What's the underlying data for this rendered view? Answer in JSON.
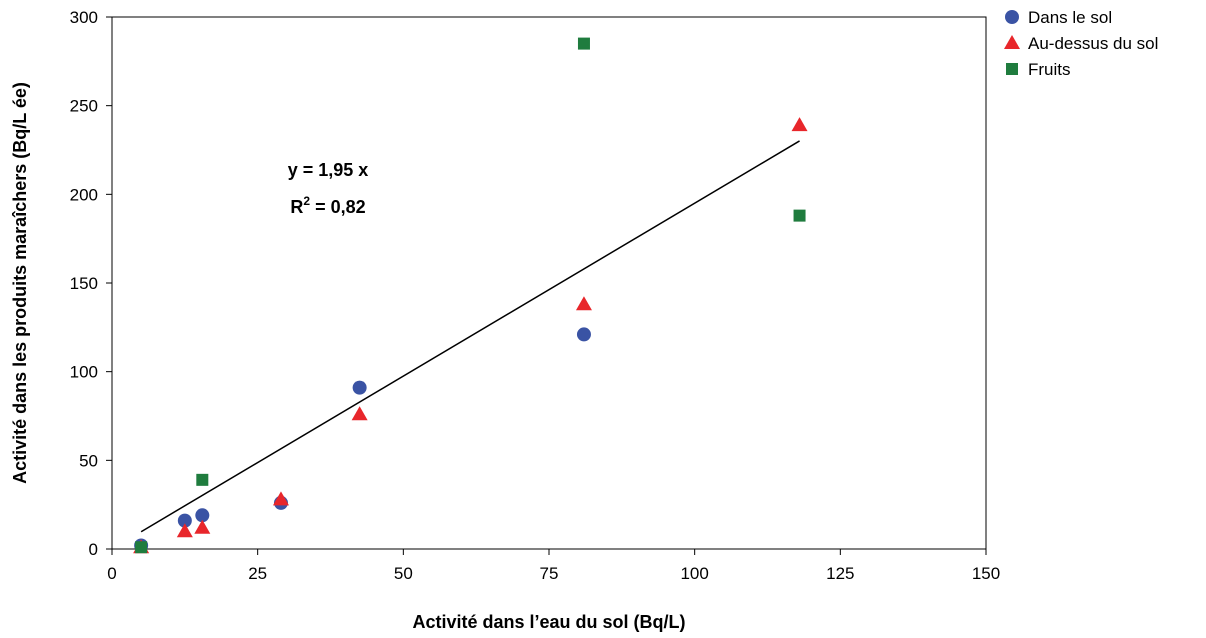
{
  "chart_data": {
    "type": "scatter",
    "xlabel": "Activité dans l’eau du sol (Bq/L)",
    "ylabel": "Activité dans les produits maraîchers (Bq/L ée)",
    "xlim": [
      0,
      150
    ],
    "xticks": [
      0,
      25,
      50,
      75,
      100,
      125,
      150
    ],
    "ylim": [
      0,
      300
    ],
    "yticks": [
      0,
      50,
      100,
      150,
      200,
      250,
      300
    ],
    "grid": false,
    "legend": "right",
    "series": [
      {
        "name": "Dans le sol",
        "color": "#3a53a4",
        "marker": "circle",
        "x": [
          5,
          12.5,
          15.5,
          29,
          42.5,
          81
        ],
        "values": [
          2,
          16,
          19,
          26,
          91,
          121
        ]
      },
      {
        "name": "Au-dessus du sol",
        "color": "#e8262b",
        "marker": "triangle",
        "x": [
          5,
          12.5,
          15.5,
          29,
          42.5,
          81,
          118
        ],
        "values": [
          1,
          10,
          12,
          28,
          76,
          138,
          239
        ]
      },
      {
        "name": "Fruits",
        "color": "#1f7c3e",
        "marker": "square",
        "x": [
          5,
          15.5,
          81,
          118
        ],
        "values": [
          1,
          39,
          285,
          188
        ]
      }
    ],
    "trendline": {
      "slope": 1.95,
      "xrange": [
        5,
        118
      ],
      "color": "#000000"
    },
    "equation": "y = 1,95 x",
    "r2": {
      "base": "R",
      "sup": "2",
      "rest": " = 0,82"
    }
  }
}
